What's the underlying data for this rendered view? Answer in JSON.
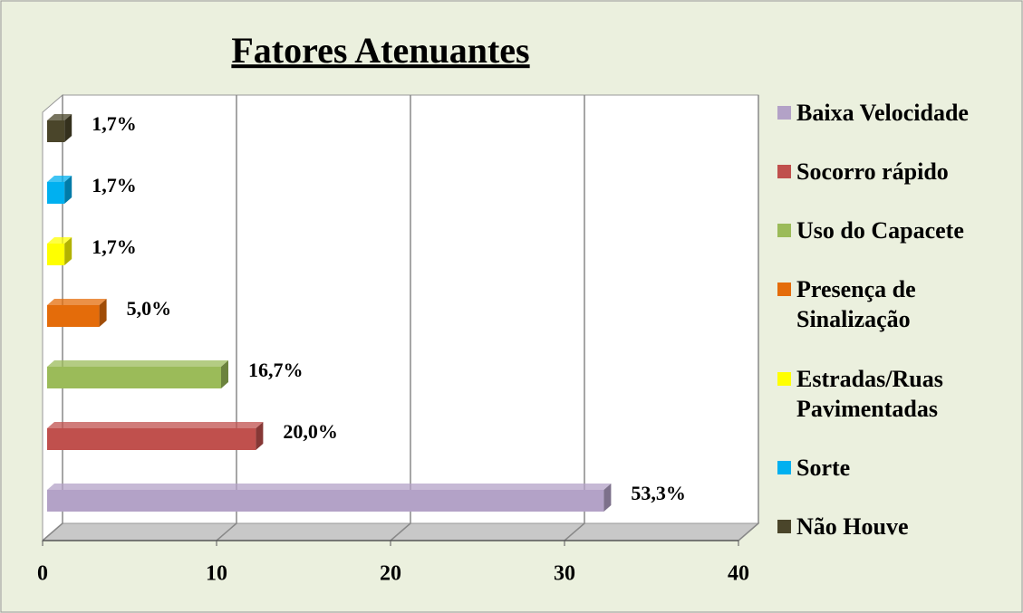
{
  "chart_data": {
    "type": "bar",
    "orientation": "horizontal",
    "title": "Fatores Atenuantes",
    "categories": [
      "Baixa Velocidade",
      "Socorro rápido",
      "Uso do Capacete",
      "Presença de Sinalização",
      "Estradas/Ruas Pavimentadas",
      "Sorte",
      "Não Houve"
    ],
    "values": [
      32,
      12,
      10,
      3,
      1,
      1,
      1
    ],
    "value_labels": [
      "53,3%",
      "20,0%",
      "16,7%",
      "5,0%",
      "1,7%",
      "1,7%",
      "1,7%"
    ],
    "colors": [
      "#b3a2c7",
      "#c0504d",
      "#9bbb59",
      "#e46c0a",
      "#ffff00",
      "#00b0f0",
      "#4a452a"
    ],
    "xlim": [
      0,
      40
    ],
    "xticks": [
      0,
      10,
      20,
      30,
      40
    ],
    "grid": true,
    "legend": "right"
  }
}
